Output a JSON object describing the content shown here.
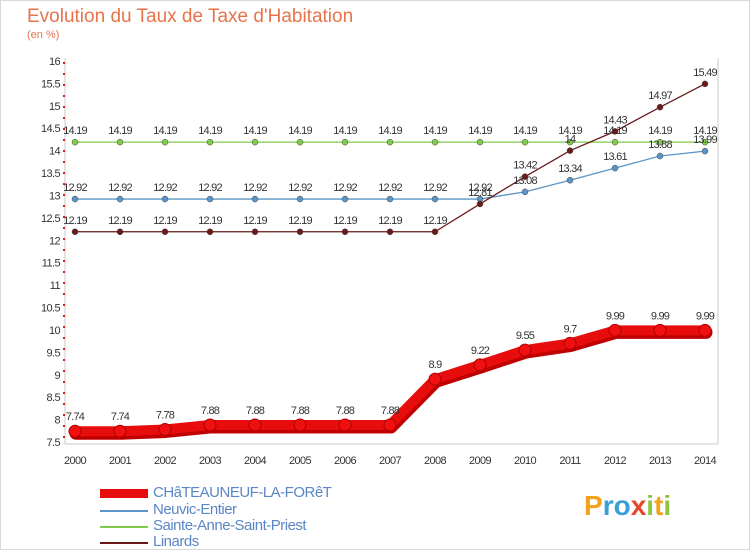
{
  "title": "Evolution du Taux de Taxe d'Habitation",
  "subtitle": "(en %)",
  "logo": {
    "letters": [
      "P",
      "r",
      "o",
      "x",
      "i",
      "t",
      "i"
    ],
    "colors": [
      "#f4a21c",
      "#3a9fd8",
      "#3a9fd8",
      "#e8452d",
      "#8ec63f",
      "#f4a21c",
      "#8ec63f"
    ]
  },
  "chart_data": {
    "type": "line",
    "x": [
      "2000",
      "2001",
      "2002",
      "2003",
      "2004",
      "2005",
      "2006",
      "2007",
      "2008",
      "2009",
      "2010",
      "2011",
      "2012",
      "2013",
      "2014"
    ],
    "ylim": [
      7.5,
      16
    ],
    "yticks": [
      "7.5",
      "8",
      "8.5",
      "9",
      "9.5",
      "10",
      "10.5",
      "11",
      "11.5",
      "12",
      "12.5",
      "13",
      "13.5",
      "14",
      "14.5",
      "15",
      "15.5",
      "16"
    ],
    "grid": false,
    "legend_position": "bottom-left",
    "series": [
      {
        "name": "CHâTEAUNEUF-LA-FORêT",
        "color": "#e80d0d",
        "values": [
          7.74,
          7.74,
          7.78,
          7.88,
          7.88,
          7.88,
          7.88,
          7.88,
          8.9,
          9.22,
          9.55,
          9.7,
          9.99,
          9.99,
          9.99
        ],
        "labels": [
          "7.74",
          "7.74",
          "7.78",
          "7.88",
          "7.88",
          "7.88",
          "7.88",
          "7.88",
          "8.9",
          "9.22",
          "9.55",
          "9.7",
          "9.99",
          "9.99",
          "9.99"
        ]
      },
      {
        "name": "Neuvic-Entier",
        "color": "#5b95c8",
        "values": [
          12.92,
          12.92,
          12.92,
          12.92,
          12.92,
          12.92,
          12.92,
          12.92,
          12.92,
          12.92,
          13.08,
          13.34,
          13.61,
          13.88,
          13.99
        ],
        "labels": [
          "12.92",
          "12.92",
          "12.92",
          "12.92",
          "12.92",
          "12.92",
          "12.92",
          "12.92",
          "12.92",
          "12.92",
          "13.08",
          "13.34",
          "13.61",
          "13.88",
          "13.99"
        ]
      },
      {
        "name": "Sainte-Anne-Saint-Priest",
        "color": "#7fcb4a",
        "values": [
          14.19,
          14.19,
          14.19,
          14.19,
          14.19,
          14.19,
          14.19,
          14.19,
          14.19,
          14.19,
          14.19,
          14.19,
          14.19,
          14.19,
          14.19
        ],
        "labels": [
          "14.19",
          "14.19",
          "14.19",
          "14.19",
          "14.19",
          "14.19",
          "14.19",
          "14.19",
          "14.19",
          "14.19",
          "14.19",
          "14.19",
          "14.19",
          "14.19",
          "14.19"
        ]
      },
      {
        "name": "Linards",
        "color": "#6b1a1a",
        "values": [
          12.19,
          12.19,
          12.19,
          12.19,
          12.19,
          12.19,
          12.19,
          12.19,
          12.19,
          12.81,
          13.42,
          14,
          14.43,
          14.97,
          15.49
        ],
        "labels": [
          "12.19",
          "12.19",
          "12.19",
          "12.19",
          "12.19",
          "12.19",
          "12.19",
          "12.19",
          "12.19",
          "12.81",
          "13.42",
          "14",
          "14.43",
          "14.97",
          "15.49"
        ]
      }
    ]
  }
}
